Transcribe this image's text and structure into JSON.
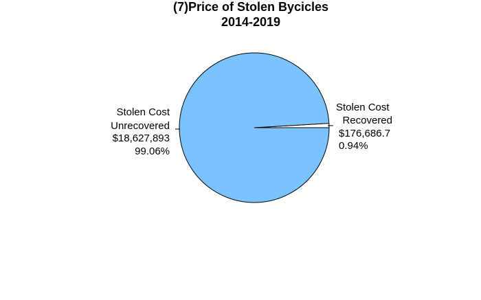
{
  "chart_data": {
    "type": "pie",
    "title_lines": [
      "(7)Price of Stolen Bycicles",
      "2014-2019"
    ],
    "slices": [
      {
        "label_lines": [
          "Stolen Cost",
          "Unrecovered"
        ],
        "value_text": "$18,627,893",
        "percent_text": "99.06%",
        "value": 18627893,
        "percent": 99.06,
        "color": "#7ac3ff"
      },
      {
        "label_lines": [
          "Stolen Cost",
          "Recovered"
        ],
        "value_text": "$176,686.7",
        "percent_text": "0.94%",
        "value": 176686.7,
        "percent": 0.94,
        "color": "#ffffff"
      }
    ]
  }
}
